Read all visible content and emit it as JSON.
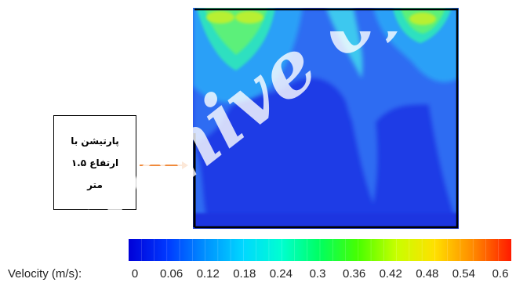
{
  "annotation": {
    "lines": [
      "پارتیشن با",
      "ارتفاع ۱.۵",
      "متر"
    ]
  },
  "legend": {
    "label": "Velocity (m/s):",
    "ticks": [
      "0",
      "0.06",
      "0.12",
      "0.18",
      "0.24",
      "0.3",
      "0.36",
      "0.42",
      "0.48",
      "0.54",
      "0.6"
    ],
    "range": [
      0,
      0.6
    ],
    "colormap": [
      "#0000d8",
      "#0038ff",
      "#0090ff",
      "#00d8ff",
      "#00ffd0",
      "#00ff60",
      "#48ff00",
      "#c8ff00",
      "#ffe000",
      "#ff8a00",
      "#ff1a00"
    ]
  },
  "colors": {
    "background_flow": "#1a3fe0",
    "arrow": "#f08a3c",
    "outline": "#000000"
  },
  "watermark": {
    "text": "archive of"
  }
}
